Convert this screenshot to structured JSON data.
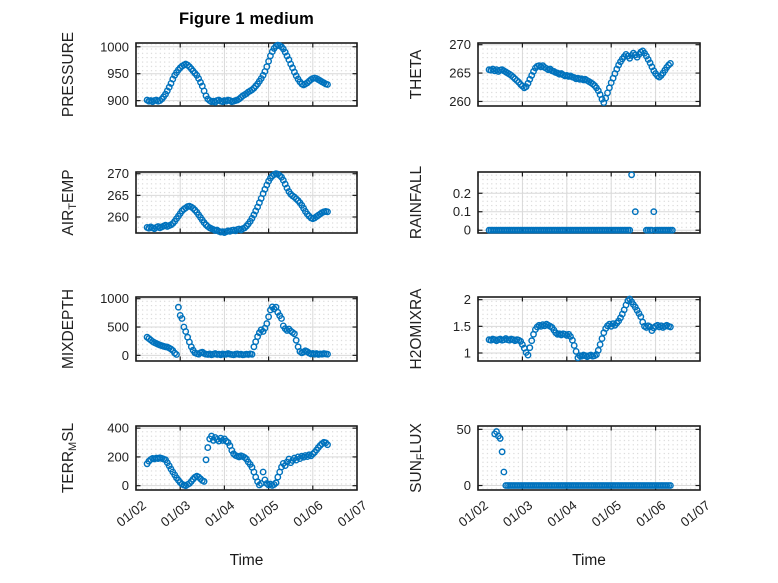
{
  "chart_data": {
    "type": "scatter",
    "title": "Figure 1 medium",
    "xlabel": "Time",
    "marker": {
      "shape": "open-circle",
      "color": "#0072BD"
    },
    "style": {
      "axis_color": "#1c1c1c",
      "major_grid_color": "#d9d9d9",
      "minor_grid_dot_color": "#c4c4c4",
      "background": "#ffffff"
    },
    "xlim": [
      0,
      5
    ],
    "x_tick_values": [
      0,
      1,
      2,
      3,
      4,
      5
    ],
    "x_ticks": [
      "01/02",
      "01/03",
      "01/04",
      "01/05",
      "01/06",
      "01/07"
    ],
    "time_start_days": 0.25,
    "time_step_days": 0.0416667,
    "legend": "none",
    "grid": "major-solid-plus-minor-dotted",
    "panels": [
      {
        "id": "pressure",
        "label": "PRESSURE",
        "label_parts": [
          {
            "t": "PRESSURE"
          }
        ],
        "row": 0,
        "col": 0,
        "ylim": [
          890,
          1007
        ],
        "ytick_values": [
          900,
          950,
          1000
        ],
        "ytick_labels": [
          "900",
          "950",
          "1000"
        ],
        "values": [
          901,
          899,
          900,
          898,
          900,
          901,
          899,
          900,
          903,
          907,
          912,
          918,
          925,
          932,
          940,
          947,
          952,
          957,
          961,
          964,
          966,
          968,
          966,
          963,
          959,
          955,
          951,
          947,
          941,
          934,
          927,
          918,
          909,
          903,
          900,
          898,
          899,
          897,
          900,
          901,
          899,
          898,
          900,
          899,
          901,
          900,
          898,
          899,
          900,
          901,
          903,
          906,
          909,
          911,
          913,
          916,
          918,
          920,
          923,
          927,
          931,
          936,
          941,
          947,
          954,
          963,
          973,
          983,
          991,
          997,
          1001,
          1003,
          1002,
          1000,
          996,
          990,
          983,
          976,
          968,
          961,
          953,
          946,
          940,
          935,
          931,
          929,
          931,
          933,
          936,
          939,
          941,
          942,
          941,
          939,
          937,
          935,
          933,
          931,
          930
        ]
      },
      {
        "id": "theta",
        "label": "THETA",
        "label_parts": [
          {
            "t": "THETA"
          }
        ],
        "row": 0,
        "col": 1,
        "ylim": [
          259.2,
          270.3
        ],
        "ytick_values": [
          260,
          265,
          270
        ],
        "ytick_labels": [
          "260",
          "265",
          "270"
        ],
        "values": [
          265.6,
          265.5,
          265.7,
          265.4,
          265.6,
          265.3,
          265.5,
          265.6,
          265.4,
          265.2,
          265.0,
          264.8,
          264.6,
          264.3,
          264.0,
          263.7,
          263.4,
          263.0,
          262.7,
          262.4,
          262.6,
          263.2,
          263.9,
          264.6,
          265.3,
          265.9,
          266.2,
          266.3,
          266.1,
          266.3,
          266.0,
          265.8,
          265.6,
          265.7,
          265.4,
          265.3,
          265.1,
          265.0,
          264.8,
          264.9,
          264.7,
          264.5,
          264.6,
          264.4,
          264.5,
          264.3,
          264.2,
          264.0,
          264.1,
          263.9,
          264.0,
          263.8,
          263.9,
          263.7,
          263.5,
          263.3,
          263.1,
          262.8,
          262.4,
          261.9,
          261.2,
          260.4,
          259.8,
          260.6,
          261.5,
          262.4,
          263.3,
          264.1,
          264.9,
          265.7,
          266.4,
          267.0,
          267.5,
          267.9,
          268.3,
          268.0,
          267.6,
          268.1,
          268.5,
          268.2,
          267.8,
          268.3,
          268.7,
          268.9,
          268.5,
          268.0,
          267.4,
          266.8,
          266.1,
          265.4,
          264.9,
          264.5,
          264.3,
          264.6,
          265.0,
          265.5,
          266.0,
          266.4,
          266.7
        ]
      },
      {
        "id": "air_temp",
        "label": "AIR_TEMP",
        "label_parts": [
          {
            "t": "AIR"
          },
          {
            "t": "T",
            "sub": true
          },
          {
            "t": "EMP"
          }
        ],
        "row": 1,
        "col": 0,
        "ylim": [
          256.3,
          270.4
        ],
        "ytick_values": [
          260,
          265,
          270
        ],
        "ytick_labels": [
          "260",
          "265",
          "270"
        ],
        "values": [
          257.6,
          257.4,
          257.7,
          257.5,
          257.3,
          257.6,
          257.8,
          257.5,
          257.7,
          257.9,
          258.1,
          257.8,
          258.0,
          258.2,
          258.5,
          259.0,
          259.6,
          260.2,
          260.8,
          261.4,
          261.8,
          262.1,
          262.4,
          262.5,
          262.3,
          262.0,
          261.6,
          261.1,
          260.5,
          259.9,
          259.3,
          258.7,
          258.2,
          257.8,
          257.5,
          257.3,
          257.1,
          256.9,
          257.0,
          256.7,
          256.5,
          256.6,
          256.4,
          256.6,
          256.8,
          256.7,
          256.9,
          257.0,
          256.8,
          257.1,
          257.2,
          257.0,
          257.3,
          257.5,
          257.9,
          258.4,
          259.0,
          259.7,
          260.5,
          261.4,
          262.3,
          263.3,
          264.3,
          265.4,
          266.4,
          267.4,
          268.3,
          269.0,
          269.5,
          269.8,
          270.0,
          269.9,
          269.6,
          269.2,
          268.5,
          267.6,
          266.7,
          265.9,
          265.3,
          264.9,
          264.6,
          264.2,
          263.8,
          263.3,
          262.7,
          262.0,
          261.3,
          260.7,
          260.2,
          259.8,
          259.6,
          259.8,
          260.1,
          260.4,
          260.7,
          261.0,
          261.2,
          261.3,
          261.2
        ]
      },
      {
        "id": "rainfall",
        "label": "RAINFALL",
        "label_parts": [
          {
            "t": "RAINFALL"
          }
        ],
        "row": 1,
        "col": 1,
        "ylim": [
          -0.015,
          0.315
        ],
        "ytick_values": [
          0,
          0.1,
          0.2
        ],
        "ytick_labels": [
          "0",
          "0.1",
          "0.2"
        ],
        "values": [
          0,
          0,
          0,
          0,
          0,
          0,
          0,
          0,
          0,
          0,
          0,
          0,
          0,
          0,
          0,
          0,
          0,
          0,
          0,
          0,
          0,
          0,
          0,
          0,
          0,
          0,
          0,
          0,
          0,
          0,
          0,
          0,
          0,
          0,
          0,
          0,
          0,
          0,
          0,
          0,
          0,
          0,
          0,
          0,
          0,
          0,
          0,
          0,
          0,
          0,
          0,
          0,
          0,
          0,
          0,
          0,
          0,
          0,
          0,
          0,
          0,
          0,
          0,
          0,
          0,
          0,
          0,
          0,
          0,
          0,
          0,
          0,
          0,
          0,
          0,
          0,
          0,
          0.3,
          null,
          0.1,
          null,
          null,
          null,
          null,
          null,
          0,
          0,
          0,
          0,
          0.1,
          0,
          0,
          0,
          0,
          0,
          0,
          0,
          0,
          0,
          0
        ]
      },
      {
        "id": "mixdepth",
        "label": "MIXDEPTH",
        "label_parts": [
          {
            "t": "MIXDEPTH"
          }
        ],
        "row": 2,
        "col": 0,
        "ylim": [
          -100,
          1030
        ],
        "ytick_values": [
          0,
          500,
          1000
        ],
        "ytick_labels": [
          "0",
          "500",
          "1000"
        ],
        "values": [
          320,
          295,
          270,
          245,
          225,
          210,
          195,
          180,
          170,
          160,
          150,
          145,
          130,
          110,
          85,
          40,
          15,
          850,
          705,
          650,
          500,
          420,
          320,
          235,
          150,
          90,
          45,
          30,
          20,
          45,
          55,
          35,
          20,
          15,
          25,
          10,
          20,
          30,
          15,
          20,
          10,
          25,
          15,
          20,
          30,
          20,
          15,
          10,
          20,
          25,
          15,
          20,
          10,
          15,
          20,
          15,
          25,
          18,
          150,
          240,
          330,
          400,
          450,
          420,
          480,
          560,
          680,
          800,
          855,
          820,
          850,
          760,
          700,
          650,
          520,
          470,
          440,
          465,
          430,
          405,
          380,
          265,
          150,
          70,
          45,
          60,
          80,
          65,
          40,
          25,
          35,
          20,
          30,
          15,
          25,
          20,
          30,
          25,
          20
        ]
      },
      {
        "id": "h2omixra",
        "label": "H2OMIXRA",
        "label_parts": [
          {
            "t": "H2OMIXRA"
          }
        ],
        "row": 2,
        "col": 1,
        "ylim": [
          0.85,
          2.05
        ],
        "ytick_values": [
          1,
          1.5,
          2
        ],
        "ytick_labels": [
          "1",
          "1.5",
          "2"
        ],
        "values": [
          1.25,
          1.24,
          1.26,
          1.25,
          1.23,
          1.25,
          1.26,
          1.24,
          1.25,
          1.27,
          1.25,
          1.24,
          1.26,
          1.25,
          1.23,
          1.25,
          1.24,
          1.22,
          1.16,
          1.09,
          1.01,
          0.96,
          1.1,
          1.23,
          1.35,
          1.44,
          1.49,
          1.52,
          1.5,
          1.53,
          1.51,
          1.54,
          1.52,
          1.5,
          1.48,
          1.43,
          1.38,
          1.35,
          1.36,
          1.34,
          1.36,
          1.35,
          1.33,
          1.35,
          1.31,
          1.24,
          1.14,
          1.03,
          0.91,
          0.95,
          0.94,
          0.96,
          0.95,
          0.93,
          0.95,
          0.96,
          0.94,
          0.95,
          0.97,
          1.05,
          1.16,
          1.27,
          1.38,
          1.46,
          1.51,
          1.54,
          1.5,
          1.55,
          1.52,
          1.56,
          1.6,
          1.66,
          1.73,
          1.81,
          1.9,
          1.98,
          2.01,
          1.96,
          1.91,
          1.86,
          1.8,
          1.74,
          1.68,
          1.58,
          1.5,
          1.48,
          1.51,
          1.49,
          1.42,
          1.47,
          1.5,
          1.52,
          1.49,
          1.51,
          1.48,
          1.5,
          1.52,
          1.5,
          1.49
        ]
      },
      {
        "id": "terr_msl",
        "label": "TERR_MSL",
        "label_parts": [
          {
            "t": "TERR"
          },
          {
            "t": "M",
            "sub": true
          },
          {
            "t": "SL"
          }
        ],
        "row": 3,
        "col": 0,
        "ylim": [
          -30,
          415
        ],
        "ytick_values": [
          0,
          200,
          400
        ],
        "ytick_labels": [
          "0",
          "200",
          "400"
        ],
        "values": [
          152,
          170,
          182,
          190,
          186,
          192,
          188,
          194,
          190,
          185,
          180,
          160,
          138,
          115,
          95,
          75,
          55,
          38,
          22,
          10,
          4,
          0,
          8,
          15,
          30,
          45,
          58,
          66,
          60,
          48,
          36,
          30,
          180,
          265,
          325,
          345,
          315,
          335,
          322,
          310,
          330,
          315,
          325,
          310,
          300,
          278,
          245,
          222,
          210,
          205,
          200,
          208,
          202,
          196,
          185,
          165,
          148,
          128,
          95,
          60,
          28,
          5,
          15,
          95,
          40,
          15,
          5,
          12,
          2,
          8,
          20,
          60,
          95,
          130,
          155,
          140,
          165,
          185,
          160,
          175,
          192,
          178,
          200,
          188,
          205,
          198,
          210,
          202,
          215,
          208,
          220,
          232,
          248,
          265,
          280,
          292,
          302,
          298,
          285
        ]
      },
      {
        "id": "sun_flux",
        "label": "SUN_FLUX",
        "label_parts": [
          {
            "t": "SUN"
          },
          {
            "t": "F",
            "sub": true
          },
          {
            "t": "LUX"
          }
        ],
        "row": 3,
        "col": 1,
        "ylim": [
          -4,
          53
        ],
        "ytick_values": [
          0,
          50
        ],
        "ytick_labels": [
          "0",
          "50"
        ],
        "values": [
          null,
          null,
          null,
          46,
          48,
          44,
          42,
          30,
          12,
          0,
          0,
          0,
          0,
          0,
          0,
          0,
          0,
          0,
          0,
          0,
          0,
          0,
          0,
          0,
          0,
          0,
          0,
          0,
          0,
          0,
          0,
          0,
          0,
          0,
          0,
          0,
          0,
          0,
          0,
          0,
          0,
          0,
          0,
          0,
          0,
          0,
          0,
          0,
          0,
          0,
          0,
          0,
          0,
          0,
          0,
          0,
          0,
          0,
          0,
          0,
          0,
          0,
          0,
          0,
          0,
          0,
          0,
          0,
          0,
          0,
          0,
          0,
          0,
          0,
          0,
          0,
          0,
          0,
          0,
          0,
          0,
          0,
          0,
          0,
          0,
          0,
          0,
          0,
          0,
          0,
          0,
          0,
          0,
          0,
          0,
          0,
          0,
          0,
          0
        ]
      }
    ]
  }
}
